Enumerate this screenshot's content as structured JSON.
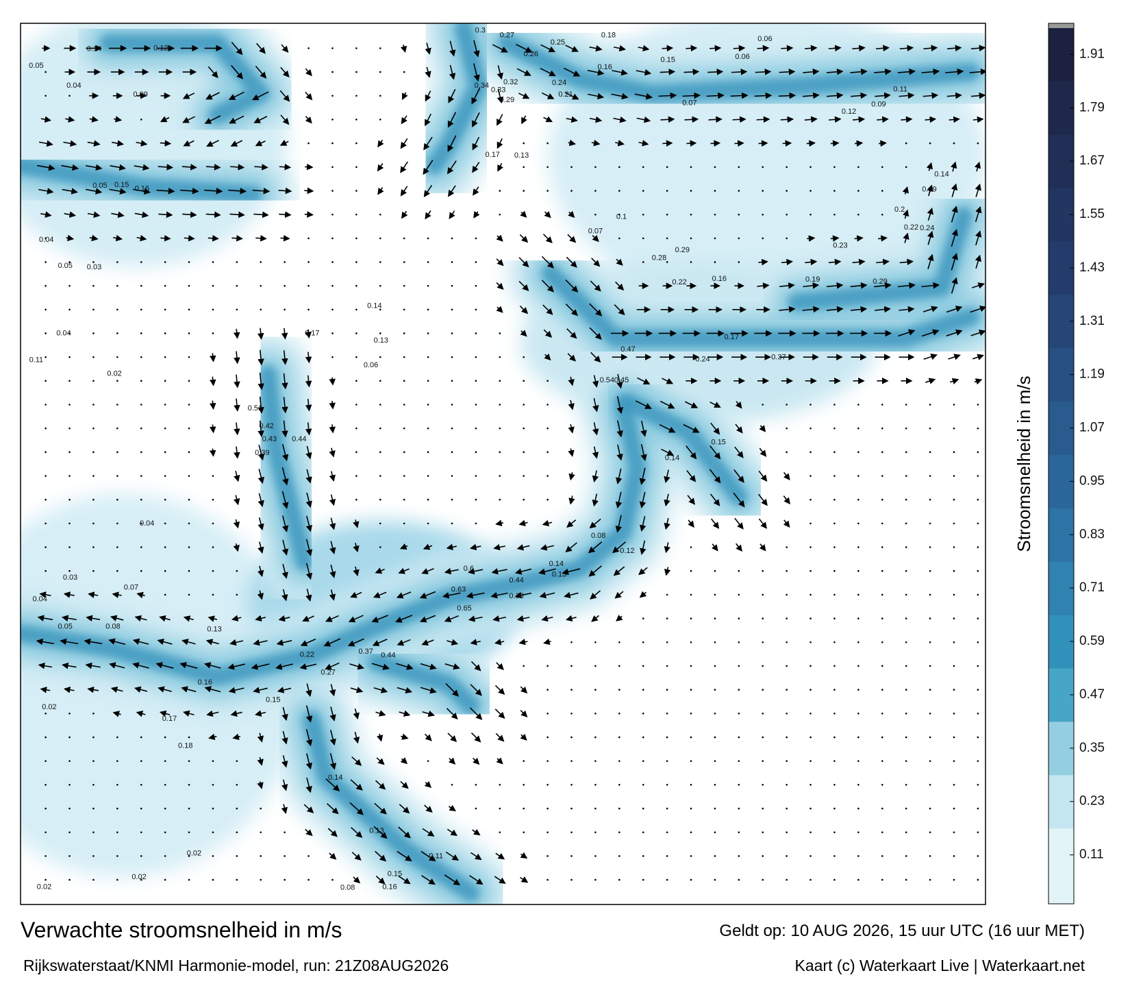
{
  "title": "Verwachte stroomsnelheid in m/s",
  "source": "Rijkswaterstaat/KNMI Harmonie-model, run: 21Z08AUG2026",
  "valid": "Geldt op: 10 AUG 2026, 15 uur UTC (16 uur MET)",
  "credit": "Kaart (c) Waterkaart Live | Waterkaart.net",
  "colorbar": {
    "label": "Stroomsnelheid in m/s",
    "lim": [
      0,
      1.98
    ],
    "ticks": [
      0.11,
      0.23,
      0.35,
      0.47,
      0.59,
      0.71,
      0.83,
      0.95,
      1.07,
      1.19,
      1.31,
      1.43,
      1.55,
      1.67,
      1.79,
      1.91
    ]
  },
  "map": {
    "speed_labels": [
      0.3,
      0.27,
      0.25,
      0.18,
      0.26,
      0.16,
      0.15,
      0.34,
      0.33,
      0.32,
      0.24,
      0.21,
      0.29,
      0.17,
      0.13,
      0.1,
      0.07,
      0.28,
      0.29,
      0.22,
      0.16,
      0.19,
      0.23,
      0.29,
      0.47,
      0.45,
      0.54,
      0.44,
      0.43,
      0.39,
      0.51,
      0.42,
      0.44,
      0.63,
      0.65,
      0.6,
      0.38,
      0.37,
      0.44,
      0.14,
      0.13,
      0.22,
      0.27,
      0.16,
      0.15,
      0.17,
      0.18,
      0.13,
      0.08,
      0.05,
      0.04,
      0.03,
      0.07,
      0.04,
      0.02,
      0.02,
      0.02,
      0.02,
      0.16,
      0.15,
      0.08,
      0.11,
      0.13,
      0.14,
      0.06,
      0.06,
      0.11,
      0.09,
      0.12,
      0.07,
      0.14,
      0.19,
      0.2,
      0.22,
      0.24,
      0.37,
      0.24,
      0.17,
      0.15,
      0.14,
      0.08,
      0.12,
      0.05,
      0.04,
      0.14,
      0.12,
      0.09,
      0.05,
      0.15,
      0.04,
      0.05,
      0.03,
      0.11,
      0.02,
      0.04,
      0.16,
      0.13,
      0.17,
      0.06,
      0.14
    ]
  }
}
